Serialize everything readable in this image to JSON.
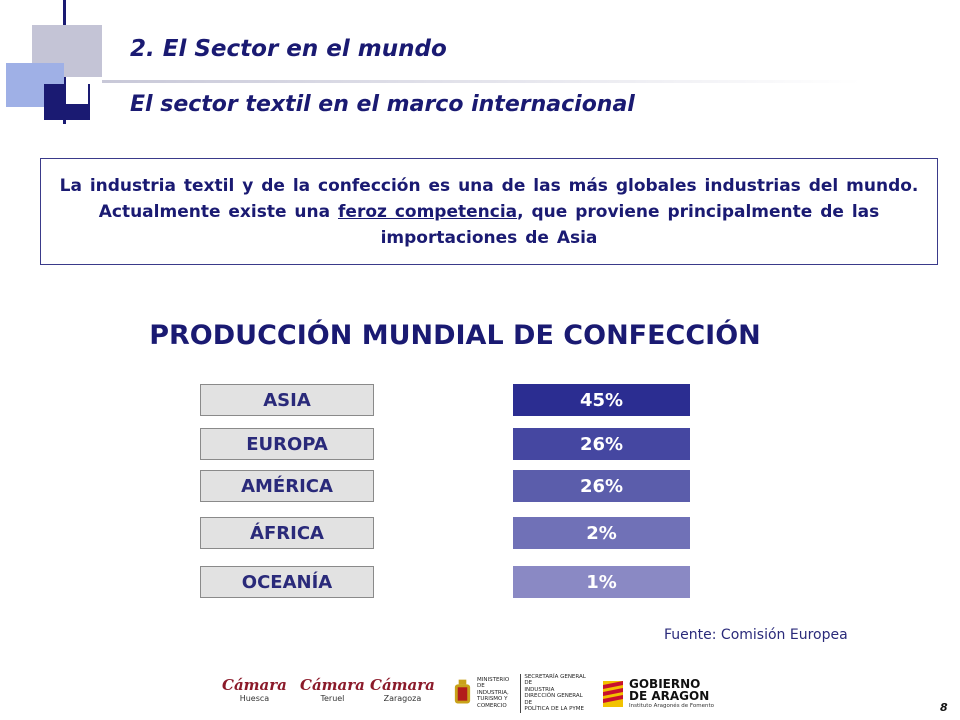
{
  "header": {
    "title": "2. El Sector en el mundo",
    "subtitle": "El sector textil en el marco internacional"
  },
  "intro": {
    "text_before": "La industria textil y de la confección es una de las más globales industrias del mundo. Actualmente existe una ",
    "emphasis": "feroz competencia",
    "text_after": ", que proviene principalmente de las importaciones de Asia"
  },
  "chart_data": {
    "type": "table",
    "title": "PRODUCCIÓN MUNDIAL DE CONFECCIÓN",
    "categories": [
      "ASIA",
      "EUROPA",
      "AMÉRICA",
      "ÁFRICA",
      "OCEANÍA"
    ],
    "values": [
      45,
      26,
      26,
      2,
      1
    ],
    "value_labels": [
      "45%",
      "26%",
      "26%",
      "2%",
      "1%"
    ],
    "unit": "%",
    "colors": [
      "#2b2d91",
      "#4547a1",
      "#5b5dab",
      "#7071b7",
      "#8a89c4"
    ],
    "label_bg": "#e2e2e2"
  },
  "source": "Fuente: Comisión Europea",
  "footer": {
    "logos": [
      {
        "name": "Cámara",
        "sub": "Huesca"
      },
      {
        "name": "Cámara",
        "sub": "Teruel"
      },
      {
        "name": "Cámara",
        "sub": "Zaragoza"
      }
    ],
    "ministry": {
      "left": [
        "MINISTERIO",
        "DE INDUSTRIA,",
        "TURISMO Y",
        "COMERCIO"
      ],
      "right": [
        "SECRETARÍA GENERAL DE",
        "INDUSTRIA",
        "DIRECCIÓN GENERAL DE",
        "POLÍTICA DE LA PYME"
      ]
    },
    "aragon": {
      "line1": "GOBIERNO",
      "line2": "DE ARAGON",
      "line3": "Instituto Aragonés de Fomento"
    },
    "page_number": "8"
  },
  "theme": {
    "navy": "#1a1a72",
    "deco_light": "#c8c8dc",
    "deco_blue": "#9fb0e6"
  }
}
